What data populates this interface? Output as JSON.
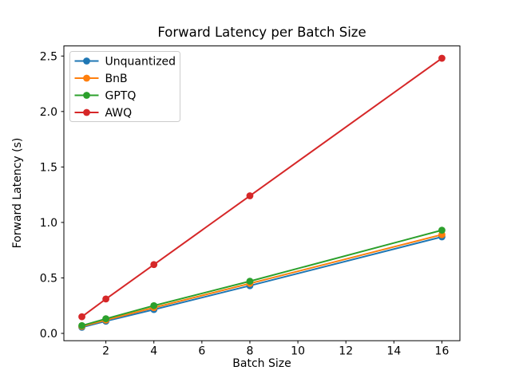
{
  "chart_data": {
    "type": "line",
    "title": "Forward Latency per Batch Size",
    "xlabel": "Batch Size",
    "ylabel": "Forward Latency (s)",
    "x": [
      1,
      2,
      4,
      8,
      16
    ],
    "series": [
      {
        "name": "Unquantized",
        "color": "#1f77b4",
        "values": [
          0.055,
          0.11,
          0.215,
          0.43,
          0.87
        ]
      },
      {
        "name": "BnB",
        "color": "#ff7f0e",
        "values": [
          0.063,
          0.12,
          0.232,
          0.45,
          0.89
        ]
      },
      {
        "name": "GPTQ",
        "color": "#2ca02c",
        "values": [
          0.07,
          0.132,
          0.25,
          0.47,
          0.93
        ]
      },
      {
        "name": "AWQ",
        "color": "#d62728",
        "values": [
          0.15,
          0.31,
          0.62,
          1.24,
          2.48
        ]
      }
    ],
    "xticks": [
      2,
      4,
      6,
      8,
      10,
      12,
      14,
      16
    ],
    "xtick_labels": [
      "2",
      "4",
      "6",
      "8",
      "10",
      "12",
      "14",
      "16"
    ],
    "yticks": [
      0.0,
      0.5,
      1.0,
      1.5,
      2.0,
      2.5
    ],
    "ytick_labels": [
      "0.0",
      "0.5",
      "1.0",
      "1.5",
      "2.0",
      "2.5"
    ],
    "xlim": [
      0.25,
      16.75
    ],
    "ylim": [
      -0.066,
      2.591
    ],
    "grid": false,
    "legend_position": "upper left",
    "marker": "circle",
    "axes_color": "#000000",
    "legend_border_color": "#cccccc",
    "background_color": "#ffffff"
  }
}
